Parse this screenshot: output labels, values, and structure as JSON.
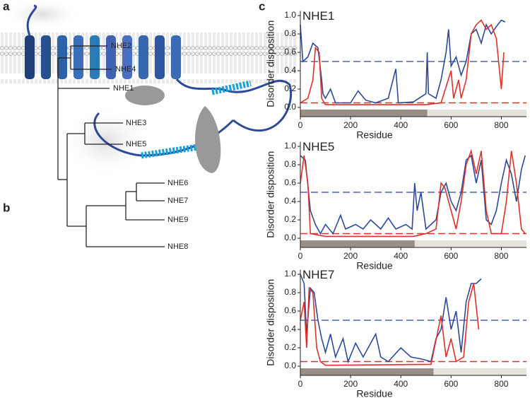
{
  "panel_labels": [
    "a",
    "b",
    "c"
  ],
  "tree": {
    "leaves": [
      "NHE2",
      "NHE4",
      "NHE1",
      "NHE3",
      "NHE5",
      "NHE6",
      "NHE7",
      "NHE9",
      "NHE8"
    ]
  },
  "chart_data": [
    {
      "type": "line",
      "title": "NHE1",
      "x_label": "Residue",
      "y_label": "Disorder disposition",
      "xlim": [
        0,
        900
      ],
      "xticks": [
        0,
        200,
        400,
        600,
        800
      ],
      "ylim": [
        -0.1,
        1.05
      ],
      "yticks": [
        {
          "value": 0,
          "label": "0.0"
        },
        0.2,
        0.4,
        0.6,
        0.8,
        {
          "value": 1,
          "label": "1.0"
        }
      ],
      "highlight": [
        0,
        505
      ],
      "reference_lines": [
        {
          "value": 0.5,
          "color": "#4a66b0"
        },
        {
          "value": 0.05,
          "color": "#e0302a"
        }
      ],
      "series": [
        {
          "color": "#2d4a9a",
          "x": [
            0,
            10,
            30,
            50,
            70,
            85,
            90,
            100,
            120,
            140,
            200,
            230,
            260,
            300,
            350,
            380,
            390,
            450,
            500,
            505,
            510,
            540,
            560,
            580,
            590,
            600,
            620,
            640,
            660,
            680,
            700,
            720,
            740,
            760,
            780,
            800,
            815
          ],
          "values": [
            0.9,
            0.5,
            0.55,
            0.7,
            0.65,
            0.3,
            0.15,
            0.1,
            0.2,
            0.05,
            0.05,
            0.18,
            0.08,
            0.05,
            0.1,
            0.42,
            0.05,
            0.06,
            0.15,
            0.6,
            0.15,
            0.1,
            0.3,
            0.6,
            0.85,
            0.45,
            0.55,
            0.35,
            0.5,
            0.8,
            0.85,
            0.7,
            0.9,
            0.8,
            0.88,
            0.95,
            0.93
          ]
        },
        {
          "color": "#e0302a",
          "x": [
            0,
            30,
            50,
            60,
            75,
            85,
            100,
            500,
            560,
            600,
            610,
            630,
            640,
            660,
            680,
            700,
            720,
            740,
            760,
            780,
            800,
            810
          ],
          "values": [
            0.05,
            0.1,
            0.3,
            0.65,
            0.6,
            0.1,
            0.03,
            0.03,
            0.05,
            0.4,
            0.1,
            0.3,
            0.1,
            0.3,
            0.8,
            0.9,
            0.95,
            0.85,
            0.9,
            0.75,
            0.2,
            0.6
          ]
        }
      ]
    },
    {
      "type": "line",
      "title": "NHE5",
      "x_label": "Residue",
      "y_label": "Disorder disposition",
      "xlim": [
        0,
        900
      ],
      "xticks": [
        0,
        200,
        400,
        600,
        800
      ],
      "ylim": [
        -0.1,
        1.05
      ],
      "yticks": [
        {
          "value": 0,
          "label": "0.0"
        },
        0.2,
        0.4,
        0.6,
        0.8,
        {
          "value": 1,
          "label": "1.0"
        }
      ],
      "highlight": [
        0,
        455
      ],
      "reference_lines": [
        {
          "value": 0.5,
          "color": "#4a66b0"
        },
        {
          "value": 0.05,
          "color": "#e0302a"
        }
      ],
      "series": [
        {
          "color": "#2d4a9a",
          "x": [
            0,
            20,
            40,
            60,
            80,
            100,
            130,
            160,
            180,
            220,
            250,
            280,
            320,
            350,
            380,
            420,
            445,
            455,
            465,
            480,
            500,
            540,
            560,
            580,
            600,
            620,
            640,
            660,
            680,
            700,
            720,
            740,
            760,
            780,
            800,
            820,
            840,
            860,
            880,
            895
          ],
          "values": [
            0.9,
            0.85,
            0.3,
            0.15,
            0.05,
            0.15,
            0.05,
            0.25,
            0.1,
            0.15,
            0.1,
            0.2,
            0.1,
            0.22,
            0.1,
            0.15,
            0.1,
            0.6,
            0.3,
            0.5,
            0.1,
            0.2,
            0.5,
            0.6,
            0.4,
            0.3,
            0.5,
            0.85,
            0.9,
            0.6,
            0.85,
            0.2,
            0.15,
            0.3,
            0.6,
            0.85,
            0.7,
            0.4,
            0.75,
            0.9
          ]
        },
        {
          "color": "#e0302a",
          "x": [
            0,
            15,
            30,
            40,
            100,
            450,
            500,
            540,
            560,
            575,
            600,
            620,
            640,
            660,
            680,
            700,
            720,
            740,
            760,
            800,
            820,
            840,
            860,
            880,
            895
          ],
          "values": [
            0.6,
            0.9,
            0.6,
            0.05,
            0.02,
            0.02,
            0.05,
            0.1,
            0.6,
            0.55,
            0.3,
            0.1,
            0.4,
            0.8,
            0.95,
            0.7,
            0.95,
            0.3,
            0.05,
            0.05,
            0.4,
            0.95,
            0.6,
            0.1,
            0.05
          ]
        }
      ]
    },
    {
      "type": "line",
      "title": "NHE7",
      "x_label": "Residue",
      "y_label": "Disorder disposition",
      "xlim": [
        0,
        900
      ],
      "xticks": [
        0,
        200,
        400,
        600,
        800
      ],
      "ylim": [
        -0.1,
        1.05
      ],
      "yticks": [
        {
          "value": 0,
          "label": "0.0"
        },
        0.2,
        0.4,
        0.6,
        0.8,
        {
          "value": 1,
          "label": "1.0"
        }
      ],
      "highlight": [
        0,
        530
      ],
      "reference_lines": [
        {
          "value": 0.5,
          "color": "#4a66b0"
        },
        {
          "value": 0.05,
          "color": "#e0302a"
        }
      ],
      "series": [
        {
          "color": "#2d4a9a",
          "x": [
            0,
            15,
            25,
            40,
            55,
            70,
            85,
            100,
            120,
            140,
            170,
            190,
            220,
            250,
            300,
            320,
            350,
            400,
            440,
            480,
            520,
            540,
            560,
            580,
            600,
            620,
            640,
            660,
            680,
            700,
            720
          ],
          "values": [
            1.0,
            0.9,
            0.35,
            0.85,
            0.8,
            0.5,
            0.3,
            0.15,
            0.35,
            0.1,
            0.3,
            0.05,
            0.25,
            0.1,
            0.35,
            0.1,
            0.05,
            0.2,
            0.1,
            0.08,
            0.05,
            0.3,
            0.4,
            0.75,
            0.4,
            0.6,
            0.15,
            0.7,
            0.9,
            0.9,
            0.95
          ]
        },
        {
          "color": "#e0302a",
          "x": [
            0,
            15,
            25,
            35,
            50,
            65,
            80,
            100,
            520,
            560,
            580,
            600,
            620,
            650,
            670,
            690,
            710
          ],
          "values": [
            0.5,
            0.7,
            0.2,
            0.85,
            0.8,
            0.2,
            0.05,
            0.01,
            0.02,
            0.55,
            0.1,
            0.3,
            0.05,
            0.1,
            0.7,
            0.9,
            0.4
          ]
        }
      ]
    }
  ]
}
